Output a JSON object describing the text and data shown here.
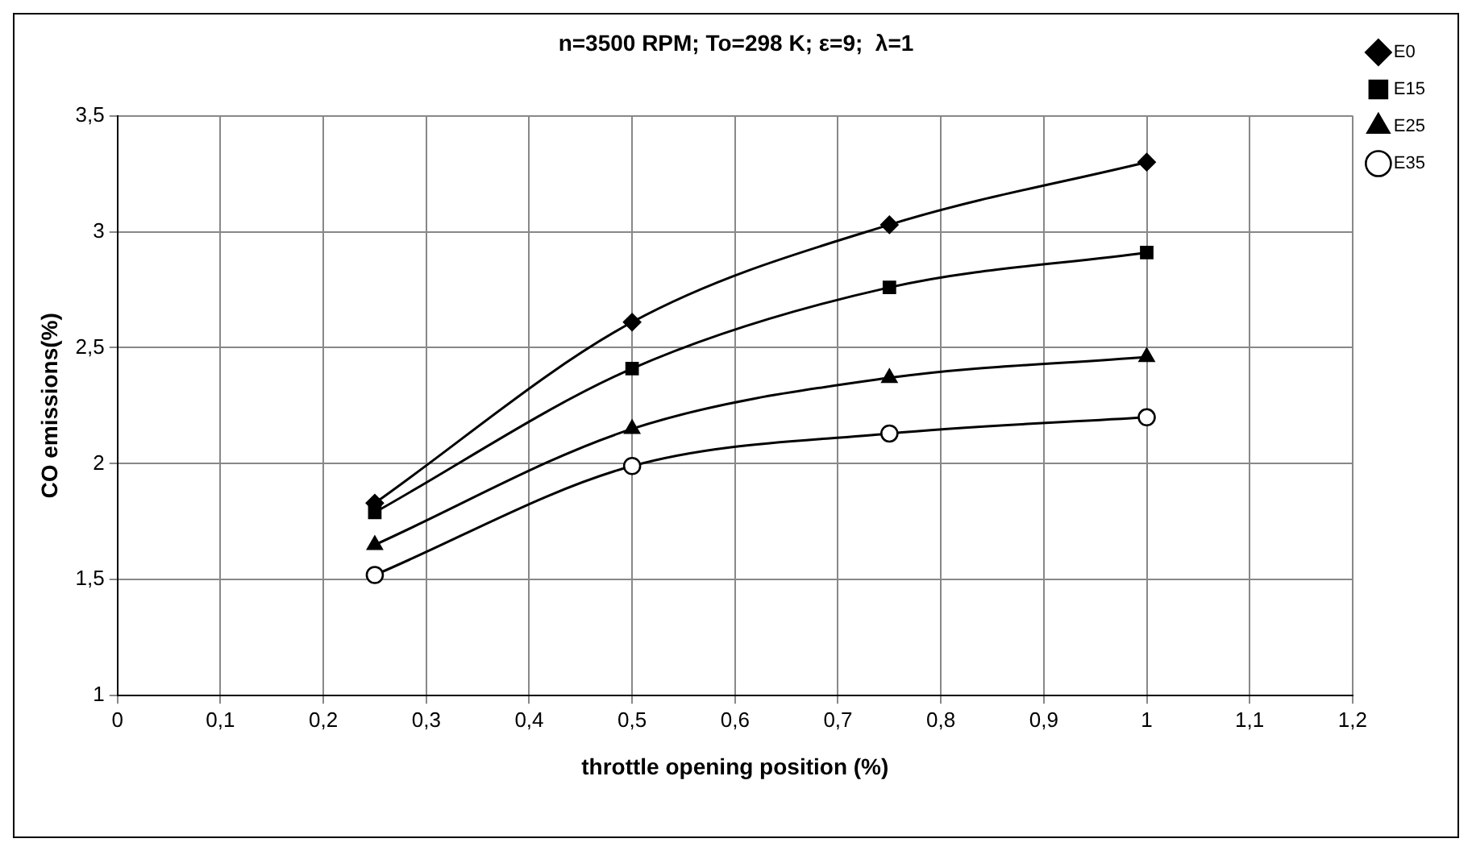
{
  "chart_data": {
    "type": "line",
    "title": "n=3500 RPM; To=298 K; ε=9;  λ=1",
    "xlabel": "throttle opening position (%)",
    "ylabel": "CO emissions(%)",
    "x": [
      0.25,
      0.5,
      0.75,
      1
    ],
    "series": [
      {
        "name": "E0",
        "color": "#000000",
        "marker": "diamond",
        "values": [
          1.83,
          2.61,
          3.03,
          3.3
        ]
      },
      {
        "name": "E15",
        "color": "#000000",
        "marker": "square",
        "values": [
          1.79,
          2.41,
          2.76,
          2.91
        ]
      },
      {
        "name": "E25",
        "color": "#000000",
        "marker": "triangle",
        "values": [
          1.65,
          2.15,
          2.37,
          2.46
        ]
      },
      {
        "name": "E35",
        "color": "#000000",
        "marker": "circle",
        "values": [
          1.52,
          1.99,
          2.13,
          2.2
        ]
      }
    ],
    "xlim": [
      0,
      1.2
    ],
    "xticks": [
      0,
      {
        "value": 0.1,
        "label": "0,1"
      },
      {
        "value": 0.2,
        "label": "0,2"
      },
      {
        "value": 0.3,
        "label": "0,3"
      },
      {
        "value": 0.4,
        "label": "0,4"
      },
      {
        "value": 0.5,
        "label": "0,5"
      },
      {
        "value": 0.6,
        "label": "0,6"
      },
      {
        "value": 0.7,
        "label": "0,7"
      },
      {
        "value": 0.8,
        "label": "0,8"
      },
      {
        "value": 0.9,
        "label": "0,9"
      },
      1,
      {
        "value": 1.1,
        "label": "1,1"
      },
      {
        "value": 1.2,
        "label": "1,2"
      }
    ],
    "ylim": [
      1,
      3.5
    ],
    "yticks": [
      1,
      {
        "value": 1.5,
        "label": "1,5"
      },
      2,
      {
        "value": 2.5,
        "label": "2,5"
      },
      3,
      {
        "value": 3.5,
        "label": "3,5"
      }
    ],
    "grid": true,
    "legend": "top right",
    "line_style": "solid"
  }
}
